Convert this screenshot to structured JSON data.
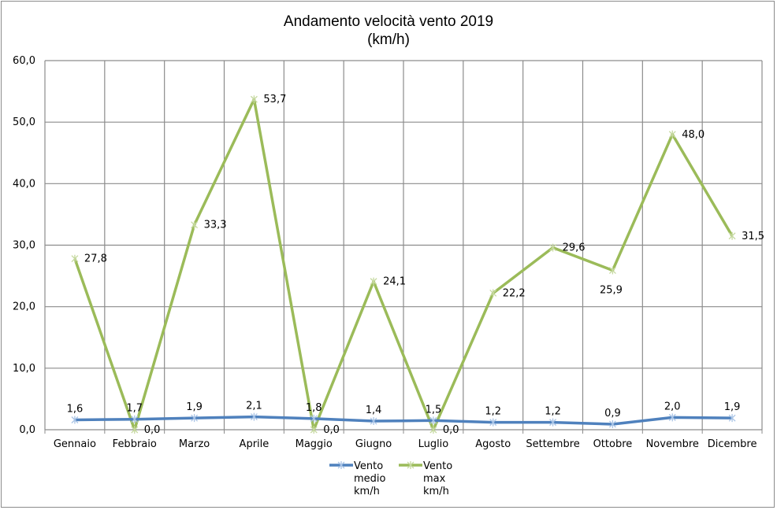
{
  "chart_data": {
    "type": "line",
    "title": "Andamento velocità vento 2019",
    "subtitle": "(km/h)",
    "categories": [
      "Gennaio",
      "Febbraio",
      "Marzo",
      "Aprile",
      "Maggio",
      "Giugno",
      "Luglio",
      "Agosto",
      "Settembre",
      "Ottobre",
      "Novembre",
      "Dicembre"
    ],
    "ylim": [
      0,
      60
    ],
    "yticks": [
      "0,0",
      "10,0",
      "20,0",
      "30,0",
      "40,0",
      "50,0",
      "60,0"
    ],
    "grid": true,
    "legend_position": "bottom",
    "series": [
      {
        "name": "Vento medio km/h",
        "legend_lines": [
          "Vento",
          "medio",
          "km/h"
        ],
        "color": "#4f81bd",
        "values": [
          1.6,
          1.7,
          1.9,
          2.1,
          1.8,
          1.4,
          1.5,
          1.2,
          1.2,
          0.9,
          2.0,
          1.9
        ],
        "labels": [
          "1,6",
          "1,7",
          "1,9",
          "2,1",
          "1,8",
          "1,4",
          "1,5",
          "1,2",
          "1,2",
          "0,9",
          "2,0",
          "1,9"
        ]
      },
      {
        "name": "Vento max km/h",
        "legend_lines": [
          "Vento",
          "max",
          "km/h"
        ],
        "color": "#9bbb59",
        "values": [
          27.8,
          0.0,
          33.3,
          53.7,
          0.0,
          24.1,
          0.0,
          22.2,
          29.6,
          25.9,
          48.0,
          31.5
        ],
        "labels": [
          "27,8",
          "0,0",
          "33,3",
          "53,7",
          "0,0",
          "24,1",
          "0,0",
          "22,2",
          "29,6",
          "25,9",
          "48,0",
          "31,5"
        ]
      }
    ]
  }
}
